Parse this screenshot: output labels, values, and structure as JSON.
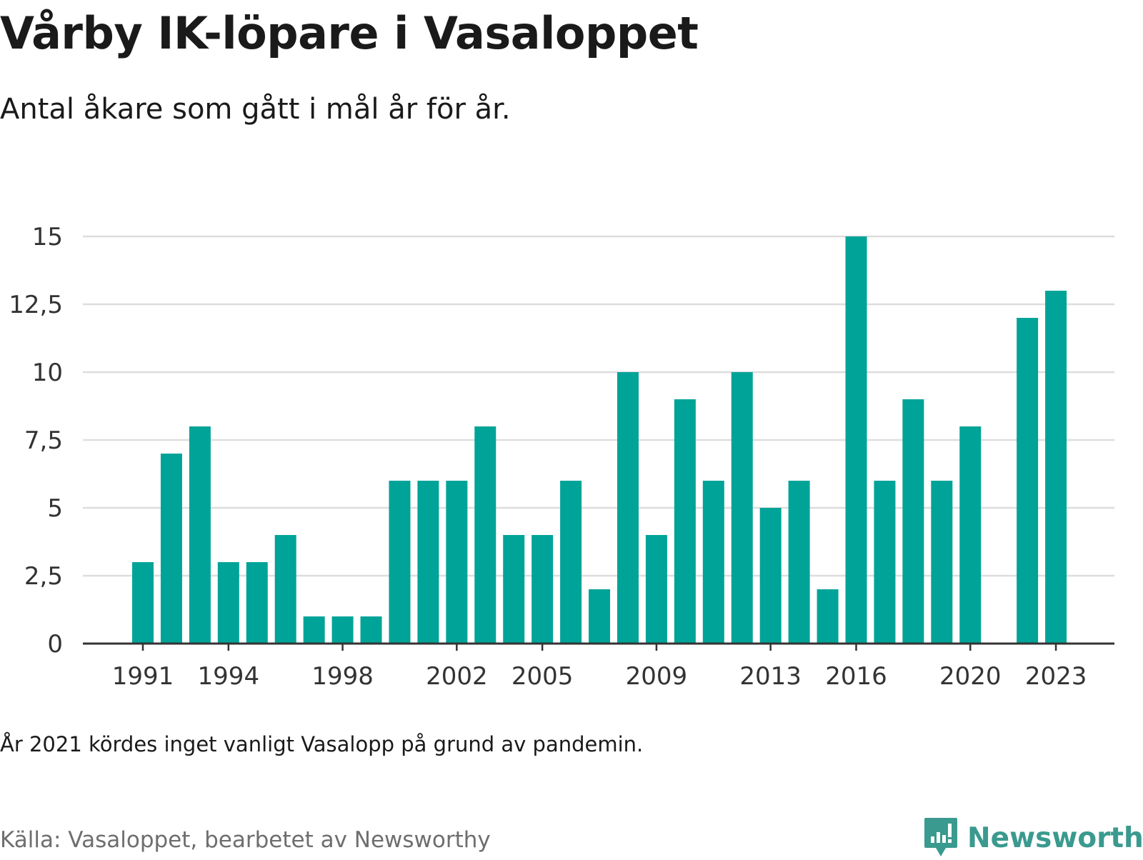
{
  "title": "Vårby IK-löpare i Vasaloppet",
  "subtitle": "Antal åkare som gått i mål år för år.",
  "note": "År 2021 kördes inget vanligt Vasalopp på grund av pandemin.",
  "source": "Källa: Vasaloppet, bearbetet av Newsworthy",
  "brand": {
    "name": "Newsworthy",
    "icon": "newsworthy-logo-icon",
    "color": "#3a9a8f"
  },
  "colors": {
    "bar": "#00a398",
    "grid": "#dddddd",
    "axis": "#333333"
  },
  "chart_data": {
    "type": "bar",
    "categories": [
      1991,
      1992,
      1993,
      1994,
      1995,
      1996,
      1997,
      1998,
      1999,
      2000,
      2001,
      2002,
      2003,
      2004,
      2005,
      2006,
      2007,
      2008,
      2009,
      2010,
      2011,
      2012,
      2013,
      2014,
      2015,
      2016,
      2017,
      2018,
      2019,
      2020,
      2021,
      2022,
      2023
    ],
    "values": [
      3,
      7,
      8,
      3,
      3,
      4,
      1,
      1,
      1,
      6,
      6,
      6,
      8,
      4,
      4,
      6,
      2,
      10,
      4,
      9,
      6,
      10,
      5,
      6,
      2,
      15,
      6,
      9,
      6,
      8,
      null,
      12,
      13
    ],
    "x_tick_labels": [
      "1991",
      "1994",
      "1998",
      "2002",
      "2005",
      "2009",
      "2013",
      "2016",
      "2020",
      "2023"
    ],
    "y_ticks": [
      0,
      2.5,
      5,
      7.5,
      10,
      12.5,
      15
    ],
    "y_tick_labels": [
      "0",
      "2,5",
      "5",
      "7,5",
      "10",
      "12,5",
      "15"
    ],
    "ylim": [
      0,
      15
    ],
    "grid": true,
    "legend": "none"
  }
}
